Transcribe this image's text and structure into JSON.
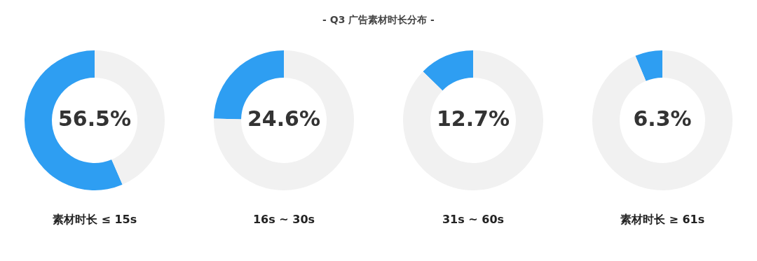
{
  "chart_data": [
    {
      "type": "other",
      "title": "- Q3 广告素材时长分布 -"
    },
    {
      "type": "donut",
      "xlabel": "素材时长 ≤ 15s",
      "categories": [
        null,
        null
      ],
      "values": [
        56.5,
        43.5
      ],
      "colors": [
        "#2e9ef2",
        "#f1f1f1"
      ],
      "value_labels": [
        "56.5%",
        null
      ]
    },
    {
      "type": "donut",
      "xlabel": "16s ~ 30s",
      "categories": [
        null,
        null
      ],
      "values": [
        24.6,
        75.4
      ],
      "colors": [
        "#2e9ef2",
        "#f1f1f1"
      ],
      "value_labels": [
        "24.6%",
        null
      ]
    },
    {
      "type": "donut",
      "xlabel": "31s ~ 60s",
      "categories": [
        null,
        null
      ],
      "values": [
        12.7,
        87.3
      ],
      "colors": [
        "#2e9ef2",
        "#f1f1f1"
      ],
      "value_labels": [
        "12.7%",
        null
      ]
    },
    {
      "type": "donut",
      "xlabel": "素材时长 ≥ 61s",
      "categories": [
        null,
        null
      ],
      "values": [
        6.3,
        93.7
      ],
      "colors": [
        "#2e9ef2",
        "#f1f1f1"
      ],
      "value_labels": [
        "6.3%",
        null
      ]
    }
  ]
}
